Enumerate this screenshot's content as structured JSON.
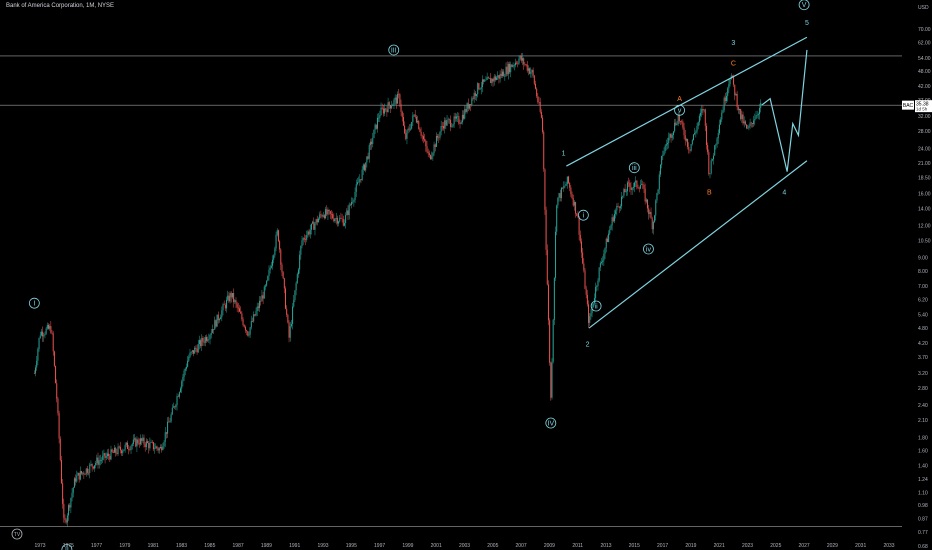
{
  "chart_title": "Bank of America Corporation, 1M, NYSE",
  "colors": {
    "background": "#000000",
    "bull": "#26a69a",
    "bear": "#ef5350",
    "annotation": "#7fd4e0",
    "corrective": "#ff7f27",
    "hline": "#c8c8c8"
  },
  "chart_data": {
    "type": "candlestick",
    "title": "Bank of America Corporation, 1M, NYSE",
    "ylabel": "USD",
    "y_scale": "log",
    "y_ticks": [
      "70.00",
      "62.00",
      "54.00",
      "48.00",
      "42.00",
      "37.00",
      "32.00",
      "28.00",
      "24.00",
      "21.00",
      "18.50",
      "16.00",
      "14.00",
      "12.00",
      "10.50",
      "9.00",
      "8.00",
      "7.00",
      "6.20",
      "5.40",
      "4.80",
      "4.20",
      "3.70",
      "3.20",
      "2.80",
      "2.40",
      "2.10",
      "1.80",
      "1.60",
      "1.40",
      "1.24",
      "1.10",
      "0.98",
      "0.87",
      "0.77",
      "0.68",
      "0.60"
    ],
    "x_ticks": [
      "1973",
      "1975",
      "1977",
      "1979",
      "1981",
      "1983",
      "1985",
      "1987",
      "1989",
      "1991",
      "1993",
      "1995",
      "1997",
      "1999",
      "2001",
      "2003",
      "2005",
      "2007",
      "2009",
      "2011",
      "2013",
      "2015",
      "2017",
      "2019",
      "2021",
      "2023",
      "2025",
      "2027",
      "2029",
      "2031",
      "2033"
    ],
    "price_badge": {
      "symbol": "BAC",
      "price": "35.38",
      "countdown": "1d 5h"
    },
    "horizontal_levels": [
      55.0,
      35.38,
      0.81
    ],
    "price_path": [
      {
        "t": 1972.6,
        "p": 3.2
      },
      {
        "t": 1973.0,
        "p": 4.6
      },
      {
        "t": 1973.8,
        "p": 4.8
      },
      {
        "t": 1974.2,
        "p": 2.5
      },
      {
        "t": 1974.7,
        "p": 0.81
      },
      {
        "t": 1975.5,
        "p": 1.25
      },
      {
        "t": 1977.0,
        "p": 1.45
      },
      {
        "t": 1978.5,
        "p": 1.6
      },
      {
        "t": 1980.0,
        "p": 1.75
      },
      {
        "t": 1981.5,
        "p": 1.62
      },
      {
        "t": 1982.5,
        "p": 2.4
      },
      {
        "t": 1983.5,
        "p": 3.7
      },
      {
        "t": 1985.0,
        "p": 4.6
      },
      {
        "t": 1986.5,
        "p": 6.5
      },
      {
        "t": 1987.7,
        "p": 4.6
      },
      {
        "t": 1989.0,
        "p": 7.0
      },
      {
        "t": 1989.8,
        "p": 11.5
      },
      {
        "t": 1990.6,
        "p": 4.4
      },
      {
        "t": 1991.5,
        "p": 10.5
      },
      {
        "t": 1993.0,
        "p": 13.5
      },
      {
        "t": 1994.5,
        "p": 12.5
      },
      {
        "t": 1996.0,
        "p": 21.0
      },
      {
        "t": 1997.0,
        "p": 33.0
      },
      {
        "t": 1998.4,
        "p": 38.0
      },
      {
        "t": 1998.8,
        "p": 26.0
      },
      {
        "t": 1999.5,
        "p": 33.0
      },
      {
        "t": 2000.5,
        "p": 22.0
      },
      {
        "t": 2001.5,
        "p": 30.0
      },
      {
        "t": 2002.7,
        "p": 31.0
      },
      {
        "t": 2004.0,
        "p": 42.0
      },
      {
        "t": 2005.5,
        "p": 46.0
      },
      {
        "t": 2006.9,
        "p": 54.0
      },
      {
        "t": 2007.8,
        "p": 47.0
      },
      {
        "t": 2008.5,
        "p": 30.0
      },
      {
        "t": 2009.1,
        "p": 2.55
      },
      {
        "t": 2009.5,
        "p": 15.0
      },
      {
        "t": 2010.3,
        "p": 18.0
      },
      {
        "t": 2011.0,
        "p": 13.0
      },
      {
        "t": 2011.8,
        "p": 5.0
      },
      {
        "t": 2012.5,
        "p": 8.0
      },
      {
        "t": 2013.5,
        "p": 13.0
      },
      {
        "t": 2014.5,
        "p": 17.0
      },
      {
        "t": 2015.5,
        "p": 17.5
      },
      {
        "t": 2016.3,
        "p": 12.0
      },
      {
        "t": 2017.0,
        "p": 23.0
      },
      {
        "t": 2018.1,
        "p": 32.0
      },
      {
        "t": 2018.9,
        "p": 24.0
      },
      {
        "t": 2019.9,
        "p": 35.0
      },
      {
        "t": 2020.3,
        "p": 19.0
      },
      {
        "t": 2021.0,
        "p": 30.0
      },
      {
        "t": 2021.8,
        "p": 47.0
      },
      {
        "t": 2022.5,
        "p": 32.0
      },
      {
        "t": 2023.0,
        "p": 28.0
      },
      {
        "t": 2023.5,
        "p": 32.0
      },
      {
        "t": 2024.0,
        "p": 35.38
      }
    ],
    "projection": [
      {
        "t": 2024.0,
        "p": 35.38
      },
      {
        "t": 2024.6,
        "p": 37.5
      },
      {
        "t": 2025.8,
        "p": 19.5
      },
      {
        "t": 2026.2,
        "p": 30.0
      },
      {
        "t": 2026.6,
        "p": 27.0
      },
      {
        "t": 2027.2,
        "p": 58.0
      }
    ],
    "channel_lines": [
      [
        {
          "t": 2010.2,
          "p": 20.5
        },
        {
          "t": 2027.2,
          "p": 65.0
        }
      ],
      [
        {
          "t": 2011.8,
          "p": 4.8
        },
        {
          "t": 2027.2,
          "p": 21.5
        }
      ]
    ],
    "wave_labels": [
      {
        "text": "I",
        "t": 1972.6,
        "p": 6.0,
        "circled": true,
        "color": "annotation"
      },
      {
        "text": "II",
        "t": 1974.9,
        "p": 0.66,
        "circled": true,
        "color": "annotation"
      },
      {
        "text": "III",
        "t": 1998.0,
        "p": 58.0,
        "circled": true,
        "color": "annotation"
      },
      {
        "text": "IV",
        "t": 2009.1,
        "p": 2.05,
        "circled": true,
        "color": "annotation"
      },
      {
        "text": "V",
        "t": 2027.0,
        "p": 87.0,
        "circled": true,
        "color": "annotation"
      },
      {
        "text": "1",
        "t": 2010.0,
        "p": 23.0,
        "circled": false,
        "color": "annotation"
      },
      {
        "text": "2",
        "t": 2011.7,
        "p": 4.15,
        "circled": false,
        "color": "annotation"
      },
      {
        "text": "3",
        "t": 2022.0,
        "p": 62.0,
        "circled": false,
        "color": "annotation"
      },
      {
        "text": "4",
        "t": 2025.6,
        "p": 16.2,
        "circled": false,
        "color": "annotation"
      },
      {
        "text": "5",
        "t": 2027.2,
        "p": 74.0,
        "circled": false,
        "color": "annotation"
      },
      {
        "text": "i",
        "t": 2011.4,
        "p": 13.2,
        "circled": true,
        "color": "annotation"
      },
      {
        "text": "ii",
        "t": 2012.3,
        "p": 5.85,
        "circled": true,
        "color": "annotation"
      },
      {
        "text": "iii",
        "t": 2015.0,
        "p": 20.2,
        "circled": true,
        "color": "annotation"
      },
      {
        "text": "iv",
        "t": 2016.0,
        "p": 9.75,
        "circled": true,
        "color": "annotation"
      },
      {
        "text": "v",
        "t": 2018.2,
        "p": 33.8,
        "circled": true,
        "color": "annotation"
      },
      {
        "text": "A",
        "t": 2018.2,
        "p": 37.5,
        "circled": false,
        "color": "corrective"
      },
      {
        "text": "B",
        "t": 2020.3,
        "p": 16.2,
        "circled": false,
        "color": "corrective"
      },
      {
        "text": "C",
        "t": 2022.0,
        "p": 51.5,
        "circled": false,
        "color": "corrective"
      }
    ],
    "logo_text": "TV"
  }
}
